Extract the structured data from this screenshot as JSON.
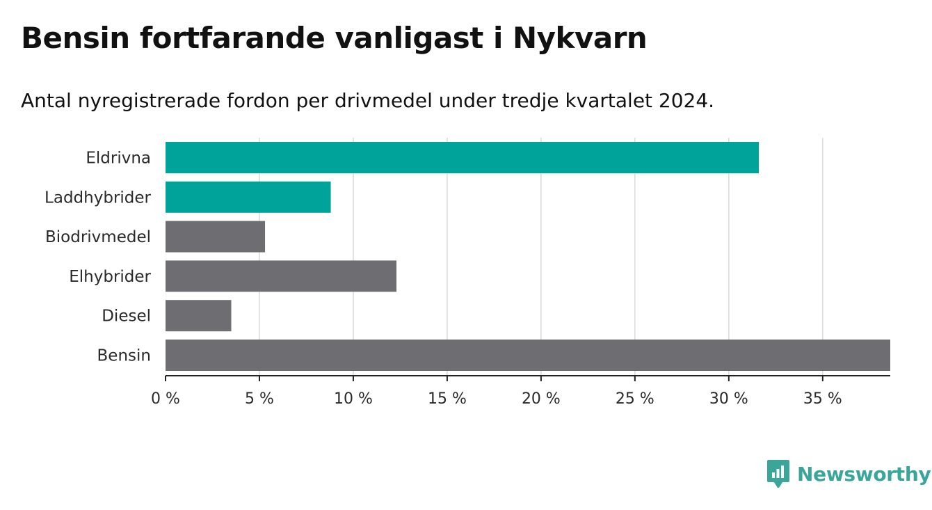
{
  "chart_data": {
    "type": "bar",
    "orientation": "horizontal",
    "title": "Bensin fortfarande vanligast i Nykvarn",
    "subtitle": "Antal nyregistrerade fordon per drivmedel under tredje kvartalet 2024.",
    "categories": [
      "Eldrivna",
      "Laddhybrider",
      "Biodrivmedel",
      "Elhybrider",
      "Diesel",
      "Bensin"
    ],
    "values": [
      31.6,
      8.8,
      5.3,
      12.3,
      3.5,
      38.6
    ],
    "colors": [
      "#00a39a",
      "#00a39a",
      "#6e6d72",
      "#6e6d72",
      "#6e6d72",
      "#6e6d72"
    ],
    "xlim": [
      0,
      38.6
    ],
    "ticks": [
      0,
      5,
      10,
      15,
      20,
      25,
      30,
      35
    ],
    "tick_labels": [
      "0 %",
      "5 %",
      "10 %",
      "15 %",
      "20 %",
      "25 %",
      "30 %",
      "35 %"
    ],
    "xlabel": "",
    "ylabel": "",
    "grid": true
  },
  "brand": {
    "name": "Newsworthy",
    "icon": "newsworthy-logo-icon",
    "color": "#3aa69a"
  }
}
